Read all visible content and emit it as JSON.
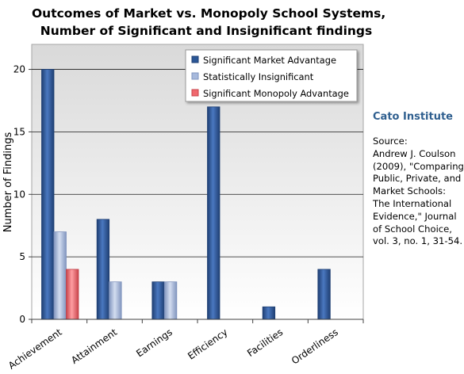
{
  "chart_data": {
    "type": "bar",
    "title_lines": [
      "Outcomes of Market vs. Monopoly School Systems,",
      "Number of Significant and Insignificant findings"
    ],
    "ylabel": "Number of Findings",
    "xlabel": "",
    "categories": [
      "Achievement",
      "Attainment",
      "Earnings",
      "Efficiency",
      "Facilities",
      "Orderliness"
    ],
    "series": [
      {
        "name": "Significant Market Advantage",
        "values": [
          20,
          8,
          3,
          17,
          1,
          4
        ],
        "color": "#2b5797"
      },
      {
        "name": "Statistically Insignificant",
        "values": [
          7,
          3,
          3,
          0,
          0,
          0
        ],
        "color": "#a7b9dc"
      },
      {
        "name": "Significant Monopoly Advantage",
        "values": [
          4,
          0,
          0,
          0,
          0,
          0
        ],
        "color": "#f0686e"
      }
    ],
    "ylim": [
      0,
      22
    ],
    "yticks": [
      0,
      5,
      10,
      15,
      20
    ],
    "grid": true,
    "legend_position": "top-right"
  },
  "side": {
    "brand": "Cato Institute",
    "source_lines": [
      "Source:",
      "Andrew J. Coulson",
      "(2009), \"Comparing",
      "Public, Private, and",
      "Market Schools:",
      "The International",
      "Evidence,\" Journal",
      "of School Choice,",
      "vol. 3, no. 1, 31-54."
    ]
  },
  "colors": {
    "plot_bg_top": "#d9d9d9",
    "plot_bg_bottom": "#ffffff",
    "brand": "#2f5f8f"
  }
}
